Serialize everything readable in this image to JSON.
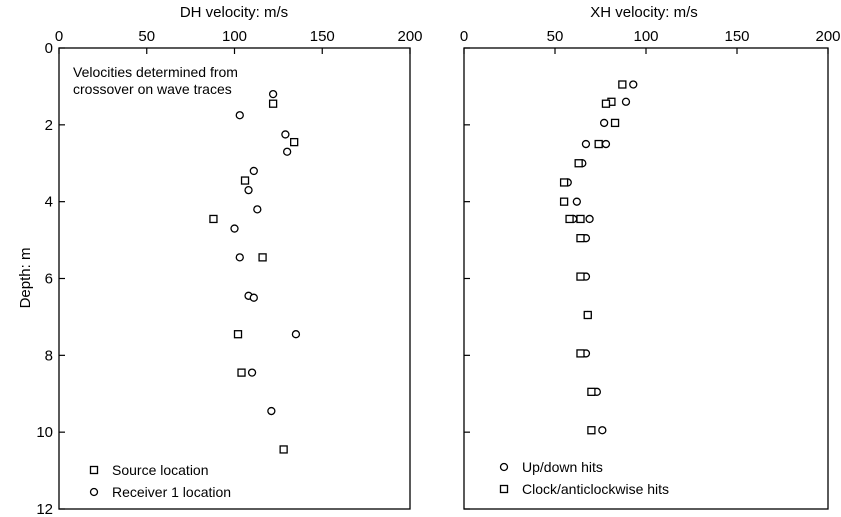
{
  "chart_data": [
    {
      "type": "scatter",
      "title": "",
      "xlabel": "DH velocity: m/s",
      "ylabel": "Depth: m",
      "x_axis_position": "top",
      "y_inverted": true,
      "xlim": [
        0,
        200
      ],
      "ylim": [
        0,
        12
      ],
      "x_ticks": [
        0,
        50,
        100,
        150,
        200
      ],
      "y_ticks": [
        0,
        2,
        4,
        6,
        8,
        10,
        12
      ],
      "grid": false,
      "legend_placement": "bottom-left",
      "annotation": [
        "Velocities determined from",
        "crossover on wave traces"
      ],
      "series": [
        {
          "name": "Source location",
          "marker": "square",
          "points": [
            {
              "x": 122,
              "y": 1.45
            },
            {
              "x": 134,
              "y": 2.45
            },
            {
              "x": 106,
              "y": 3.45
            },
            {
              "x": 88,
              "y": 4.45
            },
            {
              "x": 116,
              "y": 5.45
            },
            {
              "x": 102,
              "y": 7.45
            },
            {
              "x": 104,
              "y": 8.45
            },
            {
              "x": 128,
              "y": 10.45
            }
          ]
        },
        {
          "name": "Receiver 1 location",
          "marker": "circle",
          "points": [
            {
              "x": 122,
              "y": 1.2
            },
            {
              "x": 103,
              "y": 1.75
            },
            {
              "x": 129,
              "y": 2.25
            },
            {
              "x": 130,
              "y": 2.7
            },
            {
              "x": 111,
              "y": 3.2
            },
            {
              "x": 108,
              "y": 3.7
            },
            {
              "x": 113,
              "y": 4.2
            },
            {
              "x": 100,
              "y": 4.7
            },
            {
              "x": 103,
              "y": 5.45
            },
            {
              "x": 108,
              "y": 6.45
            },
            {
              "x": 111,
              "y": 6.5
            },
            {
              "x": 135,
              "y": 7.45
            },
            {
              "x": 110,
              "y": 8.45
            },
            {
              "x": 121,
              "y": 9.45
            }
          ]
        }
      ]
    },
    {
      "type": "scatter",
      "title": "",
      "xlabel": "XH velocity: m/s",
      "ylabel": "",
      "x_axis_position": "top",
      "y_inverted": true,
      "xlim": [
        0,
        200
      ],
      "ylim": [
        0,
        12
      ],
      "x_ticks": [
        0,
        50,
        100,
        150,
        200
      ],
      "y_ticks": [
        0,
        2,
        4,
        6,
        8,
        10,
        12
      ],
      "y_tick_labels_shown": false,
      "grid": false,
      "legend_placement": "bottom-left",
      "series": [
        {
          "name": "Up/down hits",
          "marker": "circle",
          "points": [
            {
              "x": 93,
              "y": 0.95
            },
            {
              "x": 89,
              "y": 1.4
            },
            {
              "x": 77,
              "y": 1.95
            },
            {
              "x": 78,
              "y": 2.5
            },
            {
              "x": 67,
              "y": 2.5
            },
            {
              "x": 65,
              "y": 3.0
            },
            {
              "x": 57,
              "y": 3.5
            },
            {
              "x": 62,
              "y": 4.0
            },
            {
              "x": 69,
              "y": 4.45
            },
            {
              "x": 60,
              "y": 4.45
            },
            {
              "x": 67,
              "y": 4.95
            },
            {
              "x": 67,
              "y": 5.95
            },
            {
              "x": 68,
              "y": 6.95
            },
            {
              "x": 67,
              "y": 7.95
            },
            {
              "x": 73,
              "y": 8.95
            },
            {
              "x": 76,
              "y": 9.95
            }
          ]
        },
        {
          "name": "Clock/anticlockwise hits",
          "marker": "square",
          "points": [
            {
              "x": 87,
              "y": 0.95
            },
            {
              "x": 81,
              "y": 1.4
            },
            {
              "x": 78,
              "y": 1.45
            },
            {
              "x": 83,
              "y": 1.95
            },
            {
              "x": 74,
              "y": 2.5
            },
            {
              "x": 63,
              "y": 3.0
            },
            {
              "x": 55,
              "y": 3.5
            },
            {
              "x": 55,
              "y": 4.0
            },
            {
              "x": 64,
              "y": 4.45
            },
            {
              "x": 58,
              "y": 4.45
            },
            {
              "x": 64,
              "y": 4.95
            },
            {
              "x": 64,
              "y": 5.95
            },
            {
              "x": 68,
              "y": 6.95
            },
            {
              "x": 64,
              "y": 7.95
            },
            {
              "x": 70,
              "y": 8.95
            },
            {
              "x": 70,
              "y": 9.95
            }
          ]
        }
      ]
    }
  ]
}
